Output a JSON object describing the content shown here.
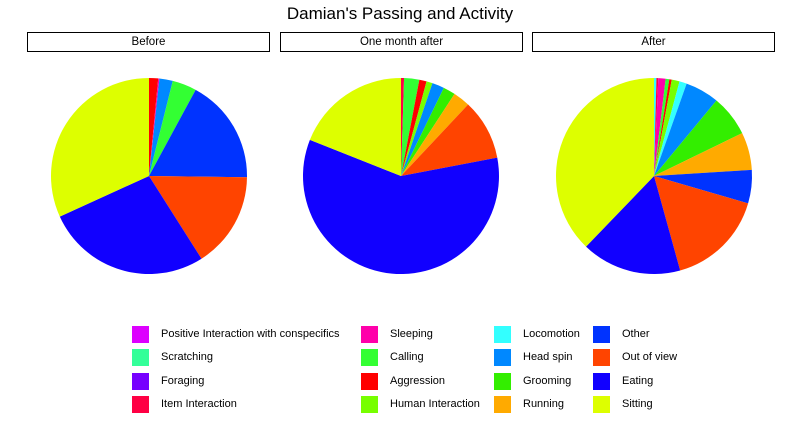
{
  "chart_data": {
    "type": "pie",
    "title": "Damian's Passing and Activity",
    "categories": [
      "Positive Interaction with conspecifics",
      "Scratching",
      "Foraging",
      "Item Interaction",
      "Sleeping",
      "Calling",
      "Aggression",
      "Human Interaction",
      "Locomotion",
      "Head spin",
      "Grooming",
      "Running",
      "Other",
      "Out of view",
      "Eating",
      "Sitting"
    ],
    "colors": {
      "Positive Interaction with conspecifics": "#DD00FF",
      "Scratching": "#33FF99",
      "Foraging": "#7700FF",
      "Item Interaction": "#FF0044",
      "Sleeping": "#FF00AA",
      "Calling": "#33FF33",
      "Aggression": "#FF0000",
      "Human Interaction": "#77FF00",
      "Locomotion": "#33FFFF",
      "Head spin": "#0088FF",
      "Grooming": "#33EE00",
      "Running": "#FFAA00",
      "Other": "#0033FF",
      "Out of view": "#FF4400",
      "Eating": "#1100FF",
      "Sitting": "#DDFF00"
    },
    "legend_position": "bottom",
    "panels": [
      {
        "name": "Before",
        "slices": [
          {
            "category": "Aggression",
            "value": 0.015
          },
          {
            "category": "Sleeping",
            "value": 0.002
          },
          {
            "category": "Head spin",
            "value": 0.022
          },
          {
            "category": "Calling",
            "value": 0.04
          },
          {
            "category": "Other",
            "value": 0.173
          },
          {
            "category": "Out of view",
            "value": 0.158
          },
          {
            "category": "Eating",
            "value": 0.272
          },
          {
            "category": "Sitting",
            "value": 0.318
          }
        ]
      },
      {
        "name": "One month after",
        "slices": [
          {
            "category": "Item Interaction",
            "value": 0.005
          },
          {
            "category": "Calling",
            "value": 0.025
          },
          {
            "category": "Aggression",
            "value": 0.012
          },
          {
            "category": "Human Interaction",
            "value": 0.01
          },
          {
            "category": "Head spin",
            "value": 0.02
          },
          {
            "category": "Grooming",
            "value": 0.02
          },
          {
            "category": "Running",
            "value": 0.028
          },
          {
            "category": "Out of view",
            "value": 0.1
          },
          {
            "category": "Eating",
            "value": 0.59
          },
          {
            "category": "Sitting",
            "value": 0.19
          }
        ]
      },
      {
        "name": "After",
        "slices": [
          {
            "category": "Locomotion",
            "value": 0.004
          },
          {
            "category": "Item Interaction",
            "value": 0.003
          },
          {
            "category": "Sleeping",
            "value": 0.012
          },
          {
            "category": "Calling",
            "value": 0.006
          },
          {
            "category": "Aggression",
            "value": 0.004
          },
          {
            "category": "Human Interaction",
            "value": 0.013
          },
          {
            "category": "Locomotion",
            "value": 0.012
          },
          {
            "category": "Head spin",
            "value": 0.056
          },
          {
            "category": "Grooming",
            "value": 0.068
          },
          {
            "category": "Running",
            "value": 0.062
          },
          {
            "category": "Other",
            "value": 0.055
          },
          {
            "category": "Out of view",
            "value": 0.162
          },
          {
            "category": "Eating",
            "value": 0.165
          },
          {
            "category": "Sitting",
            "value": 0.378
          }
        ]
      }
    ]
  }
}
